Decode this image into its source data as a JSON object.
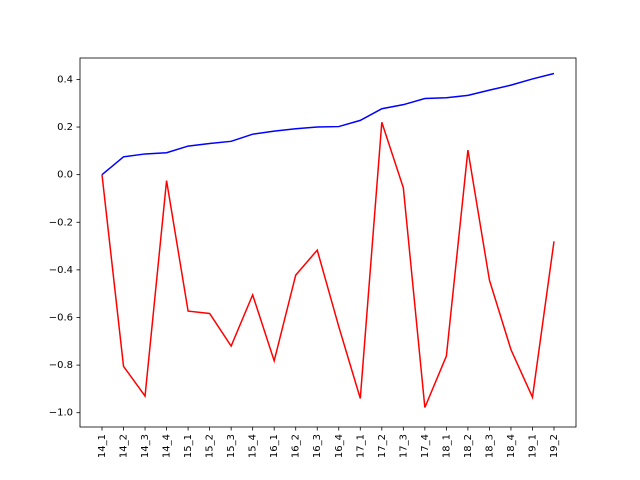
{
  "chart_data": {
    "type": "line",
    "categories": [
      "14_1",
      "14_2",
      "14_3",
      "14_4",
      "15_1",
      "15_2",
      "15_3",
      "15_4",
      "16_1",
      "16_2",
      "16_3",
      "16_4",
      "17_1",
      "17_2",
      "17_3",
      "17_4",
      "18_1",
      "18_2",
      "18_3",
      "18_4",
      "19_1",
      "19_2"
    ],
    "series": [
      {
        "color": "#0000ff",
        "values": [
          0.0,
          0.075,
          0.087,
          0.092,
          0.12,
          0.131,
          0.14,
          0.17,
          0.183,
          0.193,
          0.2,
          0.202,
          0.228,
          0.277,
          0.294,
          0.32,
          0.323,
          0.333,
          0.355,
          0.376,
          0.402,
          0.425
        ]
      },
      {
        "color": "#ff0000",
        "values": [
          0.0,
          -0.805,
          -0.93,
          -0.025,
          -0.573,
          -0.583,
          -0.72,
          -0.505,
          -0.782,
          -0.422,
          -0.317,
          -0.638,
          -0.94,
          0.22,
          -0.055,
          -0.978,
          -0.762,
          0.103,
          -0.443,
          -0.735,
          -0.935,
          -0.28
        ]
      }
    ],
    "ylim": [
      -1.06,
      0.49
    ],
    "yticks": [
      {
        "value": -1.0,
        "label": "−1.0"
      },
      {
        "value": -0.8,
        "label": "−0.8"
      },
      {
        "value": -0.6,
        "label": "−0.6"
      },
      {
        "value": -0.4,
        "label": "−0.4"
      },
      {
        "value": -0.2,
        "label": "−0.2"
      },
      {
        "value": 0,
        "label": "0.0"
      },
      0.2,
      0.4
    ]
  }
}
